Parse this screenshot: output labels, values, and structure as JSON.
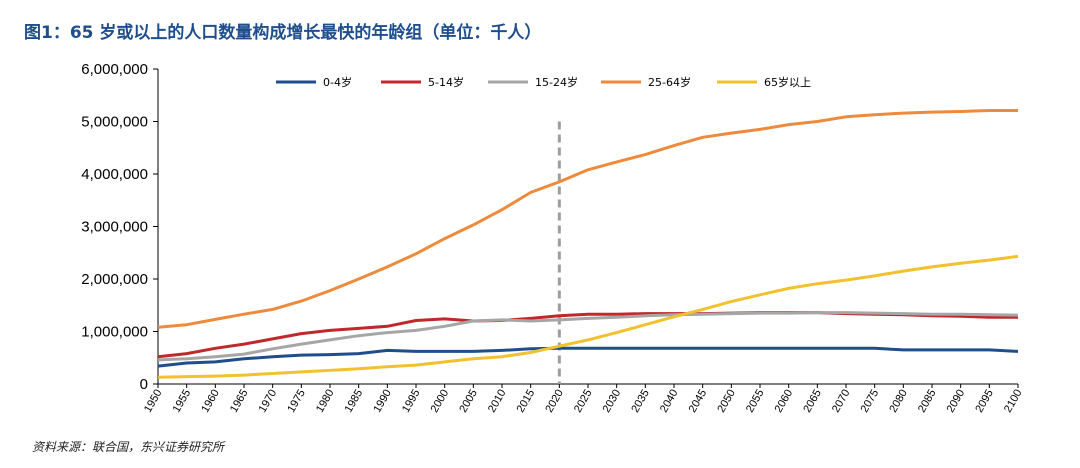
{
  "title": "图1：65 岁或以上的人口数量构成增长最快的年龄组（单位：千人）",
  "source": "资料来源：联合国，东兴证券研究所",
  "chart_data": {
    "type": "line",
    "title": "图1：65 岁或以上的人口数量构成增长最快的年龄组（单位：千人）",
    "xlabel": "",
    "ylabel": "",
    "ylim": [
      0,
      6000000
    ],
    "yticks": [
      "0",
      "1,000,000",
      "2,000,000",
      "3,000,000",
      "4,000,000",
      "5,000,000",
      "6,000,000"
    ],
    "ytick_values": [
      0,
      1000000,
      2000000,
      3000000,
      4000000,
      5000000,
      6000000
    ],
    "x": [
      1950,
      1955,
      1960,
      1965,
      1970,
      1975,
      1980,
      1985,
      1990,
      1995,
      2000,
      2005,
      2010,
      2015,
      2020,
      2025,
      2030,
      2035,
      2040,
      2045,
      2050,
      2055,
      2060,
      2065,
      2070,
      2075,
      2080,
      2085,
      2090,
      2095,
      2100
    ],
    "xtick_labels": [
      "1950",
      "1955",
      "1960",
      "1965",
      "1970",
      "1975",
      "1980",
      "1985",
      "1990",
      "1995",
      "2000",
      "2005",
      "2010",
      "2015",
      "2020",
      "2025",
      "2030",
      "2035",
      "2040",
      "2045",
      "2050",
      "2055",
      "2060",
      "2065",
      "2070",
      "2075",
      "2080",
      "2085",
      "2090",
      "2095",
      "2100"
    ],
    "reference_line_x": 2020,
    "legend_position": "top",
    "series": [
      {
        "name": "0-4岁",
        "color": "#1f4e8c",
        "values": [
          340000,
          400000,
          420000,
          480000,
          520000,
          550000,
          560000,
          580000,
          640000,
          620000,
          620000,
          620000,
          640000,
          670000,
          680000,
          680000,
          680000,
          680000,
          680000,
          680000,
          680000,
          680000,
          680000,
          680000,
          680000,
          680000,
          650000,
          650000,
          650000,
          650000,
          620000
        ]
      },
      {
        "name": "5-14岁",
        "color": "#c0282b",
        "values": [
          520000,
          580000,
          680000,
          760000,
          860000,
          960000,
          1020000,
          1060000,
          1100000,
          1210000,
          1240000,
          1200000,
          1210000,
          1250000,
          1300000,
          1330000,
          1330000,
          1340000,
          1340000,
          1340000,
          1350000,
          1360000,
          1360000,
          1360000,
          1340000,
          1330000,
          1320000,
          1300000,
          1290000,
          1270000,
          1270000
        ]
      },
      {
        "name": "15-24岁",
        "color": "#a6a6a6",
        "values": [
          460000,
          480000,
          520000,
          570000,
          670000,
          760000,
          840000,
          920000,
          980000,
          1020000,
          1100000,
          1200000,
          1220000,
          1200000,
          1220000,
          1250000,
          1270000,
          1300000,
          1320000,
          1330000,
          1340000,
          1350000,
          1350000,
          1360000,
          1360000,
          1350000,
          1340000,
          1330000,
          1330000,
          1320000,
          1310000
        ]
      },
      {
        "name": "25-64岁",
        "color": "#ee8a3c",
        "values": [
          1080000,
          1130000,
          1230000,
          1330000,
          1420000,
          1580000,
          1780000,
          2000000,
          2230000,
          2480000,
          2770000,
          3030000,
          3320000,
          3650000,
          3850000,
          4080000,
          4230000,
          4370000,
          4540000,
          4700000,
          4780000,
          4850000,
          4940000,
          5000000,
          5090000,
          5130000,
          5160000,
          5180000,
          5190000,
          5210000,
          5210000
        ]
      },
      {
        "name": "65岁以上",
        "color": "#f2c12e",
        "values": [
          130000,
          140000,
          150000,
          170000,
          200000,
          230000,
          260000,
          290000,
          330000,
          360000,
          420000,
          480000,
          520000,
          600000,
          720000,
          840000,
          980000,
          1130000,
          1280000,
          1420000,
          1570000,
          1700000,
          1820000,
          1910000,
          1980000,
          2060000,
          2150000,
          2230000,
          2300000,
          2360000,
          2430000
        ]
      }
    ]
  }
}
